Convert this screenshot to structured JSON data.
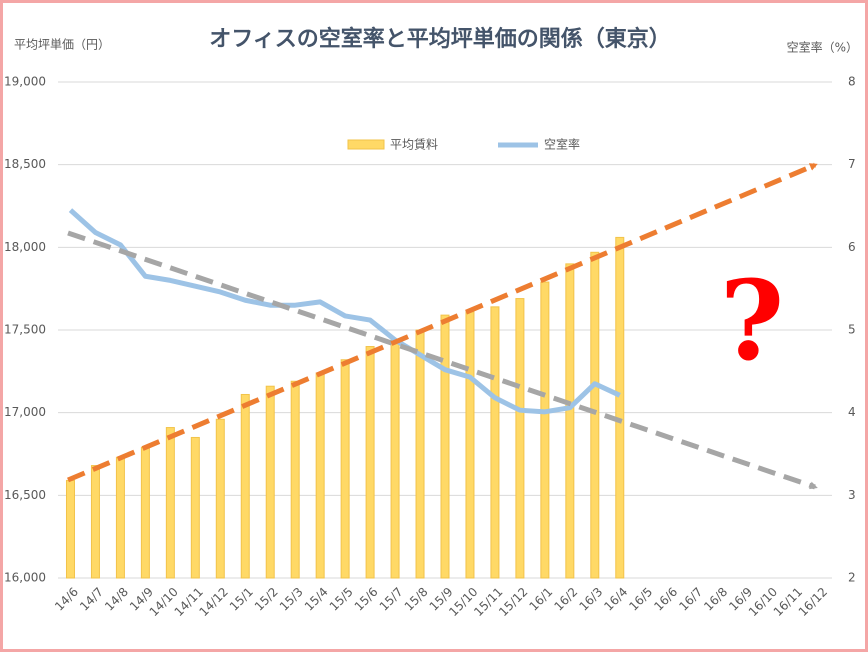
{
  "chart_data": {
    "type": "bar-line",
    "title": "オフィスの空室率と平均坪単価の関係（東京）",
    "y_label": "平均坪単価（円）",
    "y2_label": "空室率（%）",
    "annotation": "?",
    "categories": [
      "14/6",
      "14/7",
      "14/8",
      "14/9",
      "14/10",
      "14/11",
      "14/12",
      "15/1",
      "15/2",
      "15/3",
      "15/4",
      "15/5",
      "15/6",
      "15/7",
      "15/8",
      "15/9",
      "15/10",
      "15/11",
      "15/12",
      "16/1",
      "16/2",
      "16/3",
      "16/4",
      "16/5",
      "16/6",
      "16/7",
      "16/8",
      "16/9",
      "16/10",
      "16/11",
      "16/12"
    ],
    "series": [
      {
        "name": "平均賃料",
        "type": "bar",
        "color": "#ffd966",
        "values": [
          16590,
          16680,
          16730,
          16790,
          16910,
          16850,
          16960,
          17110,
          17160,
          17190,
          17240,
          17320,
          17400,
          17440,
          17500,
          17590,
          17610,
          17640,
          17690,
          17790,
          17900,
          17970,
          18060,
          null,
          null,
          null,
          null,
          null,
          null,
          null,
          null
        ]
      },
      {
        "name": "空室率",
        "type": "line",
        "axis": "y2",
        "color": "#9dc3e6",
        "values": [
          6.45,
          6.18,
          6.03,
          5.65,
          5.6,
          5.53,
          5.46,
          5.36,
          5.3,
          5.3,
          5.34,
          5.17,
          5.12,
          4.88,
          4.7,
          4.52,
          4.43,
          4.18,
          4.03,
          4.01,
          4.06,
          4.35,
          4.21,
          null,
          null,
          null,
          null,
          null,
          null,
          null,
          null
        ]
      }
    ],
    "ylim": [
      16000,
      19000
    ],
    "yticks": [
      {
        "value": 16000,
        "label": "16,000"
      },
      {
        "value": 16500,
        "label": "16,500"
      },
      {
        "value": 17000,
        "label": "17,000"
      },
      {
        "value": 17500,
        "label": "17,500"
      },
      {
        "value": 18000,
        "label": "18,000"
      },
      {
        "value": 18500,
        "label": "18,500"
      },
      {
        "value": 19000,
        "label": "19,000"
      }
    ],
    "y2lim": [
      2,
      8
    ],
    "y2ticks": [
      2,
      3,
      4,
      5,
      6,
      7,
      8
    ],
    "grid": true,
    "legend": "top"
  }
}
